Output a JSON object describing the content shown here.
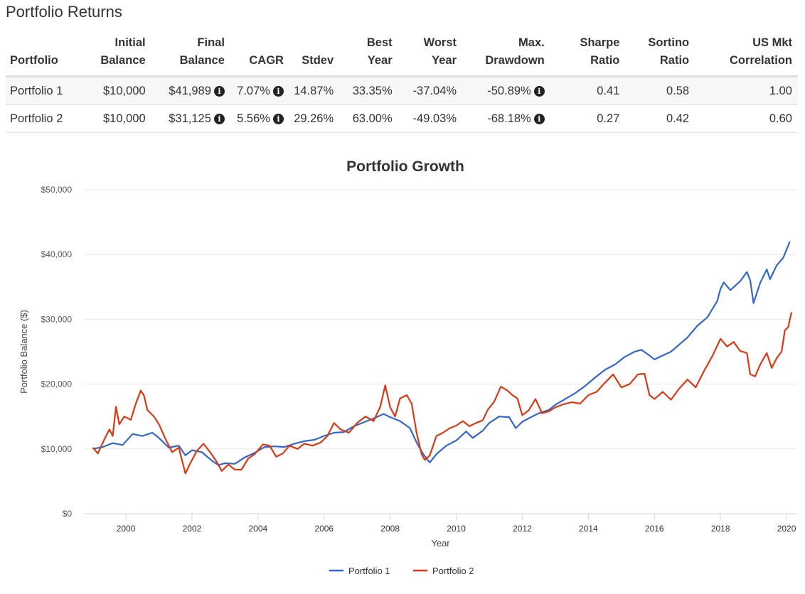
{
  "section_title": "Portfolio Returns",
  "table": {
    "headers": [
      {
        "line1": "",
        "line2": "Portfolio"
      },
      {
        "line1": "Initial",
        "line2": "Balance"
      },
      {
        "line1": "Final",
        "line2": "Balance"
      },
      {
        "line1": "",
        "line2": "CAGR"
      },
      {
        "line1": "",
        "line2": "Stdev"
      },
      {
        "line1": "Best",
        "line2": "Year"
      },
      {
        "line1": "Worst",
        "line2": "Year"
      },
      {
        "line1": "Max.",
        "line2": "Drawdown"
      },
      {
        "line1": "Sharpe",
        "line2": "Ratio"
      },
      {
        "line1": "Sortino",
        "line2": "Ratio"
      },
      {
        "line1": "US Mkt",
        "line2": "Correlation"
      }
    ],
    "rows": [
      {
        "portfolio": "Portfolio 1",
        "initial_balance": "$10,000",
        "final_balance": "$41,989",
        "cagr": "7.07%",
        "stdev": "14.87%",
        "best_year": "33.35%",
        "worst_year": "-37.04%",
        "max_drawdown": "-50.89%",
        "sharpe": "0.41",
        "sortino": "0.58",
        "us_mkt_correlation": "1.00"
      },
      {
        "portfolio": "Portfolio 2",
        "initial_balance": "$10,000",
        "final_balance": "$31,125",
        "cagr": "5.56%",
        "stdev": "29.26%",
        "best_year": "63.00%",
        "worst_year": "-49.03%",
        "max_drawdown": "-68.18%",
        "sharpe": "0.27",
        "sortino": "0.42",
        "us_mkt_correlation": "0.60"
      }
    ],
    "info_icon": "info-circle-icon"
  },
  "chart_data": {
    "type": "line",
    "title": "Portfolio Growth",
    "xlabel": "Year",
    "ylabel": "Portfolio Balance ($)",
    "xlim": [
      1998.75,
      2020.3
    ],
    "ylim": [
      0,
      50000
    ],
    "x_ticks": [
      2000,
      2002,
      2004,
      2006,
      2008,
      2010,
      2012,
      2014,
      2016,
      2018,
      2020
    ],
    "y_ticks": [
      0,
      10000,
      20000,
      30000,
      40000,
      50000
    ],
    "y_tick_labels": [
      "$0",
      "$10,000",
      "$20,000",
      "$30,000",
      "$40,000",
      "$50,000"
    ],
    "grid": "horizontal",
    "legend_position": "bottom-center",
    "series": [
      {
        "name": "Portfolio 1",
        "color": "#3366cc",
        "points": [
          [
            1999.0,
            10000
          ],
          [
            1999.3,
            10300
          ],
          [
            1999.6,
            10900
          ],
          [
            1999.9,
            10600
          ],
          [
            2000.2,
            12300
          ],
          [
            2000.5,
            12000
          ],
          [
            2000.8,
            12500
          ],
          [
            2001.0,
            11700
          ],
          [
            2001.3,
            10200
          ],
          [
            2001.6,
            10500
          ],
          [
            2001.8,
            9000
          ],
          [
            2002.0,
            9800
          ],
          [
            2002.3,
            9500
          ],
          [
            2002.6,
            8200
          ],
          [
            2002.8,
            7500
          ],
          [
            2003.0,
            7800
          ],
          [
            2003.3,
            7700
          ],
          [
            2003.6,
            8700
          ],
          [
            2003.9,
            9400
          ],
          [
            2004.2,
            10300
          ],
          [
            2004.5,
            10400
          ],
          [
            2004.8,
            10300
          ],
          [
            2005.1,
            10800
          ],
          [
            2005.4,
            11200
          ],
          [
            2005.7,
            11400
          ],
          [
            2006.0,
            12000
          ],
          [
            2006.3,
            12500
          ],
          [
            2006.6,
            12600
          ],
          [
            2006.9,
            13500
          ],
          [
            2007.2,
            14100
          ],
          [
            2007.5,
            14700
          ],
          [
            2007.8,
            15400
          ],
          [
            2008.0,
            14900
          ],
          [
            2008.3,
            14300
          ],
          [
            2008.6,
            13200
          ],
          [
            2008.8,
            11000
          ],
          [
            2009.0,
            9200
          ],
          [
            2009.2,
            7900
          ],
          [
            2009.4,
            9200
          ],
          [
            2009.7,
            10500
          ],
          [
            2010.0,
            11300
          ],
          [
            2010.3,
            12700
          ],
          [
            2010.5,
            11700
          ],
          [
            2010.8,
            12800
          ],
          [
            2011.0,
            14000
          ],
          [
            2011.3,
            15000
          ],
          [
            2011.6,
            14900
          ],
          [
            2011.8,
            13200
          ],
          [
            2012.0,
            14200
          ],
          [
            2012.3,
            15000
          ],
          [
            2012.5,
            15500
          ],
          [
            2012.8,
            16000
          ],
          [
            2013.0,
            16800
          ],
          [
            2013.3,
            17700
          ],
          [
            2013.6,
            18600
          ],
          [
            2013.9,
            19700
          ],
          [
            2014.2,
            21000
          ],
          [
            2014.5,
            22200
          ],
          [
            2014.8,
            23000
          ],
          [
            2015.1,
            24200
          ],
          [
            2015.4,
            25000
          ],
          [
            2015.6,
            25300
          ],
          [
            2015.8,
            24600
          ],
          [
            2016.0,
            23800
          ],
          [
            2016.2,
            24300
          ],
          [
            2016.5,
            25000
          ],
          [
            2016.8,
            26300
          ],
          [
            2017.0,
            27200
          ],
          [
            2017.3,
            29000
          ],
          [
            2017.6,
            30300
          ],
          [
            2017.9,
            32800
          ],
          [
            2018.0,
            34700
          ],
          [
            2018.1,
            35700
          ],
          [
            2018.3,
            34500
          ],
          [
            2018.6,
            35900
          ],
          [
            2018.8,
            37300
          ],
          [
            2018.9,
            36000
          ],
          [
            2019.0,
            32500
          ],
          [
            2019.2,
            35600
          ],
          [
            2019.4,
            37700
          ],
          [
            2019.5,
            36200
          ],
          [
            2019.7,
            38300
          ],
          [
            2019.9,
            39500
          ],
          [
            2020.1,
            42000
          ]
        ]
      },
      {
        "name": "Portfolio 2",
        "color": "#dc3912",
        "points": [
          [
            1999.0,
            10200
          ],
          [
            1999.15,
            9300
          ],
          [
            1999.35,
            11500
          ],
          [
            1999.5,
            13000
          ],
          [
            1999.6,
            12000
          ],
          [
            1999.7,
            16500
          ],
          [
            1999.8,
            13800
          ],
          [
            1999.95,
            15000
          ],
          [
            2000.15,
            14500
          ],
          [
            2000.3,
            17000
          ],
          [
            2000.45,
            19000
          ],
          [
            2000.55,
            18200
          ],
          [
            2000.65,
            16000
          ],
          [
            2000.85,
            15000
          ],
          [
            2001.0,
            13800
          ],
          [
            2001.2,
            11500
          ],
          [
            2001.4,
            9500
          ],
          [
            2001.6,
            10200
          ],
          [
            2001.8,
            6200
          ],
          [
            2001.95,
            7800
          ],
          [
            2002.15,
            9700
          ],
          [
            2002.35,
            10800
          ],
          [
            2002.55,
            9500
          ],
          [
            2002.75,
            8000
          ],
          [
            2002.9,
            6600
          ],
          [
            2003.1,
            7600
          ],
          [
            2003.3,
            6800
          ],
          [
            2003.5,
            6800
          ],
          [
            2003.7,
            8500
          ],
          [
            2003.9,
            9200
          ],
          [
            2004.15,
            10700
          ],
          [
            2004.35,
            10500
          ],
          [
            2004.55,
            8800
          ],
          [
            2004.75,
            9300
          ],
          [
            2004.95,
            10500
          ],
          [
            2005.2,
            10000
          ],
          [
            2005.4,
            10800
          ],
          [
            2005.65,
            10500
          ],
          [
            2005.9,
            11000
          ],
          [
            2006.1,
            12000
          ],
          [
            2006.3,
            14000
          ],
          [
            2006.5,
            13000
          ],
          [
            2006.75,
            12500
          ],
          [
            2007.0,
            14000
          ],
          [
            2007.25,
            15000
          ],
          [
            2007.5,
            14300
          ],
          [
            2007.7,
            16500
          ],
          [
            2007.85,
            19800
          ],
          [
            2008.0,
            16400
          ],
          [
            2008.15,
            15000
          ],
          [
            2008.3,
            17800
          ],
          [
            2008.5,
            18300
          ],
          [
            2008.65,
            17000
          ],
          [
            2008.8,
            12500
          ],
          [
            2008.95,
            9200
          ],
          [
            2009.05,
            8300
          ],
          [
            2009.2,
            9000
          ],
          [
            2009.4,
            12000
          ],
          [
            2009.6,
            12500
          ],
          [
            2009.8,
            13200
          ],
          [
            2010.0,
            13600
          ],
          [
            2010.2,
            14300
          ],
          [
            2010.4,
            13500
          ],
          [
            2010.6,
            14000
          ],
          [
            2010.8,
            14400
          ],
          [
            2010.95,
            16000
          ],
          [
            2011.15,
            17300
          ],
          [
            2011.35,
            19600
          ],
          [
            2011.55,
            19000
          ],
          [
            2011.7,
            18300
          ],
          [
            2011.85,
            17800
          ],
          [
            2012.0,
            15200
          ],
          [
            2012.2,
            16000
          ],
          [
            2012.4,
            17700
          ],
          [
            2012.6,
            15500
          ],
          [
            2012.8,
            15800
          ],
          [
            2013.0,
            16400
          ],
          [
            2013.25,
            16900
          ],
          [
            2013.5,
            17200
          ],
          [
            2013.75,
            17000
          ],
          [
            2014.0,
            18300
          ],
          [
            2014.25,
            18800
          ],
          [
            2014.5,
            20200
          ],
          [
            2014.75,
            21500
          ],
          [
            2015.0,
            19500
          ],
          [
            2015.25,
            20000
          ],
          [
            2015.5,
            21500
          ],
          [
            2015.7,
            21600
          ],
          [
            2015.85,
            18300
          ],
          [
            2016.0,
            17700
          ],
          [
            2016.25,
            18800
          ],
          [
            2016.5,
            17600
          ],
          [
            2016.75,
            19300
          ],
          [
            2017.0,
            20700
          ],
          [
            2017.25,
            19500
          ],
          [
            2017.5,
            22000
          ],
          [
            2017.75,
            24300
          ],
          [
            2018.0,
            27000
          ],
          [
            2018.2,
            25800
          ],
          [
            2018.4,
            26500
          ],
          [
            2018.6,
            25100
          ],
          [
            2018.8,
            24800
          ],
          [
            2018.9,
            21500
          ],
          [
            2019.05,
            21200
          ],
          [
            2019.2,
            23000
          ],
          [
            2019.4,
            24800
          ],
          [
            2019.55,
            22500
          ],
          [
            2019.7,
            24000
          ],
          [
            2019.85,
            25000
          ],
          [
            2019.95,
            28300
          ],
          [
            2020.05,
            28800
          ],
          [
            2020.15,
            31100
          ]
        ]
      }
    ]
  }
}
